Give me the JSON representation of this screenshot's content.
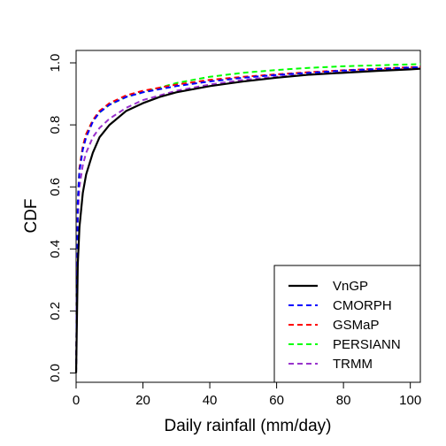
{
  "chart_data": {
    "type": "line",
    "title": "",
    "xlabel": "Daily rainfall (mm/day)",
    "ylabel": "CDF",
    "xlim": [
      0,
      103
    ],
    "ylim": [
      -0.03,
      1.04
    ],
    "xticks": [
      0,
      20,
      40,
      60,
      80,
      100
    ],
    "yticks": [
      0.0,
      0.2,
      0.4,
      0.6,
      0.8,
      1.0
    ],
    "xtick_labels": [
      "0",
      "20",
      "40",
      "60",
      "80",
      "100"
    ],
    "ytick_labels": [
      "0.0",
      "0.2",
      "0.4",
      "0.6",
      "0.8",
      "1.0"
    ],
    "grid": false,
    "legend_position": "bottom-right",
    "series": [
      {
        "name": "VnGP",
        "color": "#000000",
        "dash": "solid",
        "x": [
          0,
          0.5,
          1,
          2,
          3,
          5,
          7,
          10,
          15,
          20,
          25,
          30,
          40,
          50,
          60,
          70,
          80,
          90,
          100,
          103
        ],
        "y": [
          0,
          0.35,
          0.47,
          0.58,
          0.64,
          0.71,
          0.76,
          0.8,
          0.845,
          0.87,
          0.89,
          0.905,
          0.925,
          0.94,
          0.952,
          0.962,
          0.968,
          0.974,
          0.979,
          0.981
        ]
      },
      {
        "name": "CMORPH",
        "color": "#0000ff",
        "dash": "dashed",
        "x": [
          0,
          0.5,
          1,
          2,
          3,
          5,
          7,
          10,
          15,
          20,
          25,
          30,
          40,
          50,
          60,
          70,
          80,
          90,
          100,
          103
        ],
        "y": [
          0,
          0.55,
          0.65,
          0.72,
          0.76,
          0.81,
          0.84,
          0.865,
          0.89,
          0.905,
          0.915,
          0.925,
          0.94,
          0.952,
          0.961,
          0.968,
          0.975,
          0.98,
          0.985,
          0.986
        ]
      },
      {
        "name": "GSMaP",
        "color": "#ff0000",
        "dash": "dashed",
        "x": [
          0,
          0.5,
          1,
          2,
          3,
          5,
          7,
          10,
          15,
          20,
          25,
          30,
          40,
          50,
          60,
          70,
          80,
          90,
          100,
          103
        ],
        "y": [
          0,
          0.55,
          0.66,
          0.73,
          0.77,
          0.815,
          0.845,
          0.87,
          0.895,
          0.91,
          0.92,
          0.93,
          0.945,
          0.955,
          0.963,
          0.97,
          0.976,
          0.981,
          0.986,
          0.987
        ]
      },
      {
        "name": "PERSIANN",
        "color": "#00ff00",
        "dash": "dashed",
        "x": [
          0,
          0.5,
          1,
          2,
          3,
          5,
          7,
          10,
          15,
          20,
          25,
          30,
          40,
          50,
          60,
          70,
          80,
          90,
          100,
          103
        ],
        "y": [
          0,
          0.56,
          0.66,
          0.73,
          0.77,
          0.815,
          0.84,
          0.865,
          0.89,
          0.905,
          0.92,
          0.935,
          0.955,
          0.968,
          0.977,
          0.984,
          0.989,
          0.992,
          0.995,
          0.996
        ]
      },
      {
        "name": "TRMM",
        "color": "#9a32cd",
        "dash": "dashed",
        "x": [
          0,
          0.5,
          1,
          2,
          3,
          5,
          7,
          10,
          15,
          20,
          25,
          30,
          40,
          50,
          60,
          70,
          80,
          90,
          100,
          103
        ],
        "y": [
          0,
          0.5,
          0.6,
          0.67,
          0.71,
          0.76,
          0.79,
          0.82,
          0.855,
          0.88,
          0.895,
          0.91,
          0.93,
          0.945,
          0.955,
          0.963,
          0.97,
          0.976,
          0.981,
          0.982
        ]
      }
    ]
  }
}
